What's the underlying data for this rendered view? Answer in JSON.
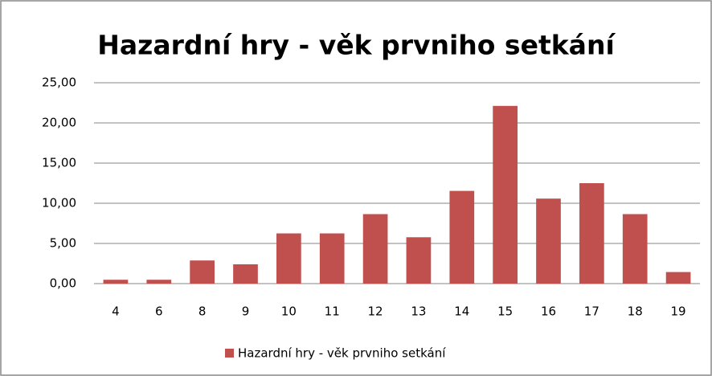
{
  "chart_data": {
    "type": "bar",
    "title": "Hazardní hry - věk prvniho setkání",
    "categories": [
      "4",
      "6",
      "8",
      "9",
      "10",
      "11",
      "12",
      "13",
      "14",
      "15",
      "16",
      "17",
      "18",
      "19"
    ],
    "series": [
      {
        "name": "Hazardní hry - věk prvniho setkání",
        "color": "#c0504d",
        "values": [
          0.48,
          0.48,
          2.88,
          2.4,
          6.25,
          6.25,
          8.65,
          5.77,
          11.54,
          22.12,
          10.58,
          12.5,
          8.65,
          1.44
        ]
      }
    ],
    "ylim": [
      0,
      25
    ],
    "yticks": [
      {
        "value": 0,
        "label": "0,00"
      },
      {
        "value": 5,
        "label": "5,00"
      },
      {
        "value": 10,
        "label": "10,00"
      },
      {
        "value": 15,
        "label": "15,00"
      },
      {
        "value": 20,
        "label": "20,00"
      },
      {
        "value": 25,
        "label": "25,00"
      }
    ],
    "grid": true,
    "legend": "bottom"
  }
}
